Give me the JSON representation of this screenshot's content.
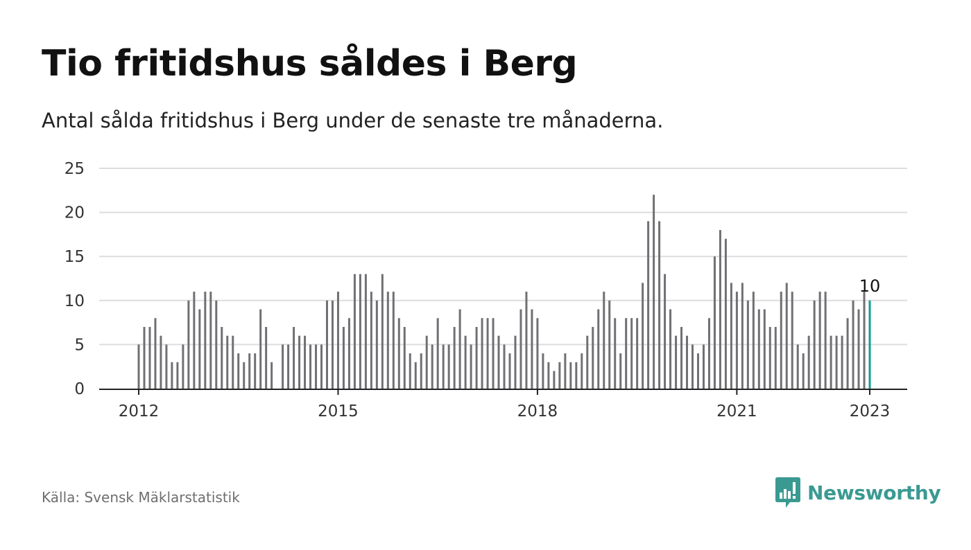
{
  "header": {
    "title": "Tio fritidshus såldes i Berg",
    "subtitle": "Antal sålda fritidshus i Berg under de senaste tre månaderna."
  },
  "footer": {
    "source": "Källa: Svensk Mäklarstatistik",
    "brand": "Newsworthy",
    "brand_icon": "bar-chart-speech-bubble-icon"
  },
  "colors": {
    "bar": "#707074",
    "highlight": "#139e91",
    "gridline": "#dddddd",
    "axis": "#222222",
    "brand": "#3a9a92"
  },
  "chart_data": {
    "type": "bar",
    "title": "Tio fritidshus såldes i Berg",
    "subtitle": "Antal sålda fritidshus i Berg under de senaste tre månaderna.",
    "xlabel": "",
    "ylabel": "",
    "ylim": [
      0,
      25
    ],
    "y_ticks": [
      0,
      5,
      10,
      15,
      20,
      25
    ],
    "x_tick_labels": [
      "2012",
      "2015",
      "2018",
      "2021",
      "2023"
    ],
    "grid": true,
    "x_start": "2012-01",
    "x_end": "2023-01",
    "frequency": "monthly",
    "values": [
      5,
      7,
      7,
      8,
      6,
      5,
      3,
      3,
      5,
      10,
      11,
      9,
      11,
      11,
      10,
      7,
      6,
      6,
      4,
      3,
      4,
      4,
      9,
      7,
      3,
      0,
      5,
      5,
      7,
      6,
      6,
      5,
      5,
      5,
      10,
      10,
      11,
      7,
      8,
      13,
      13,
      13,
      11,
      10,
      13,
      11,
      11,
      8,
      7,
      4,
      3,
      4,
      6,
      5,
      8,
      5,
      5,
      7,
      9,
      6,
      5,
      7,
      8,
      8,
      8,
      6,
      5,
      4,
      6,
      9,
      11,
      9,
      8,
      4,
      3,
      2,
      3,
      4,
      3,
      3,
      4,
      6,
      7,
      9,
      11,
      10,
      8,
      4,
      8,
      8,
      8,
      12,
      19,
      22,
      19,
      13,
      9,
      6,
      7,
      6,
      5,
      4,
      5,
      8,
      15,
      18,
      17,
      12,
      11,
      12,
      10,
      11,
      9,
      9,
      7,
      7,
      11,
      12,
      11,
      5,
      4,
      6,
      10,
      11,
      11,
      6,
      6,
      6,
      8,
      10,
      9,
      11,
      10
    ],
    "highlight": {
      "label": "10",
      "value": 10
    }
  }
}
